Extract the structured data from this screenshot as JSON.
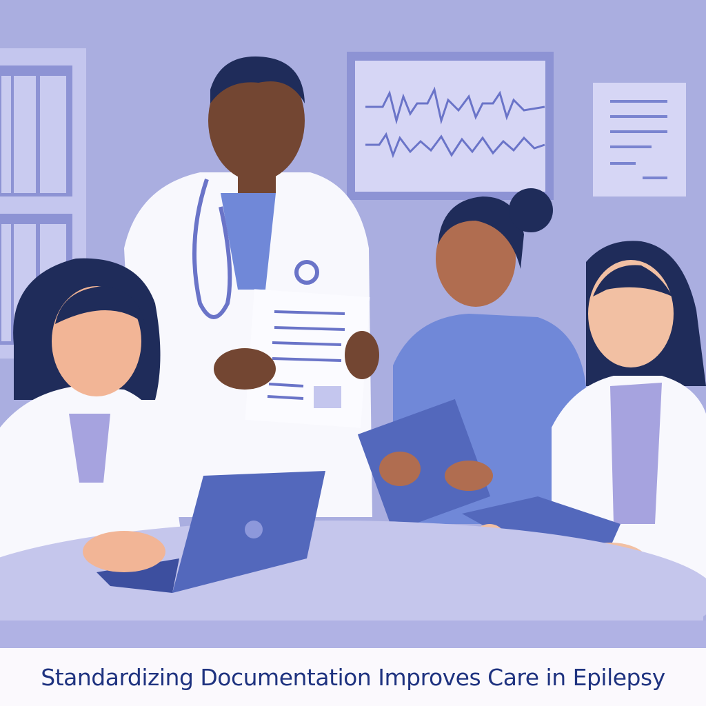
{
  "caption": "Standardizing Documentation Improves Care in Epilepsy",
  "colors": {
    "background": "#aaaee0",
    "caption_text": "#1f3380",
    "caption_bg": "#fbf9fd",
    "lab_coat": "#f8f8fd",
    "scrubs": "#7088d8",
    "device_blue": "#5368bc",
    "table": "#c5c6ec"
  },
  "icons": [
    "eeg-monitor-icon",
    "document-icon",
    "clipboard-icon",
    "laptop-icon",
    "stethoscope-icon"
  ]
}
